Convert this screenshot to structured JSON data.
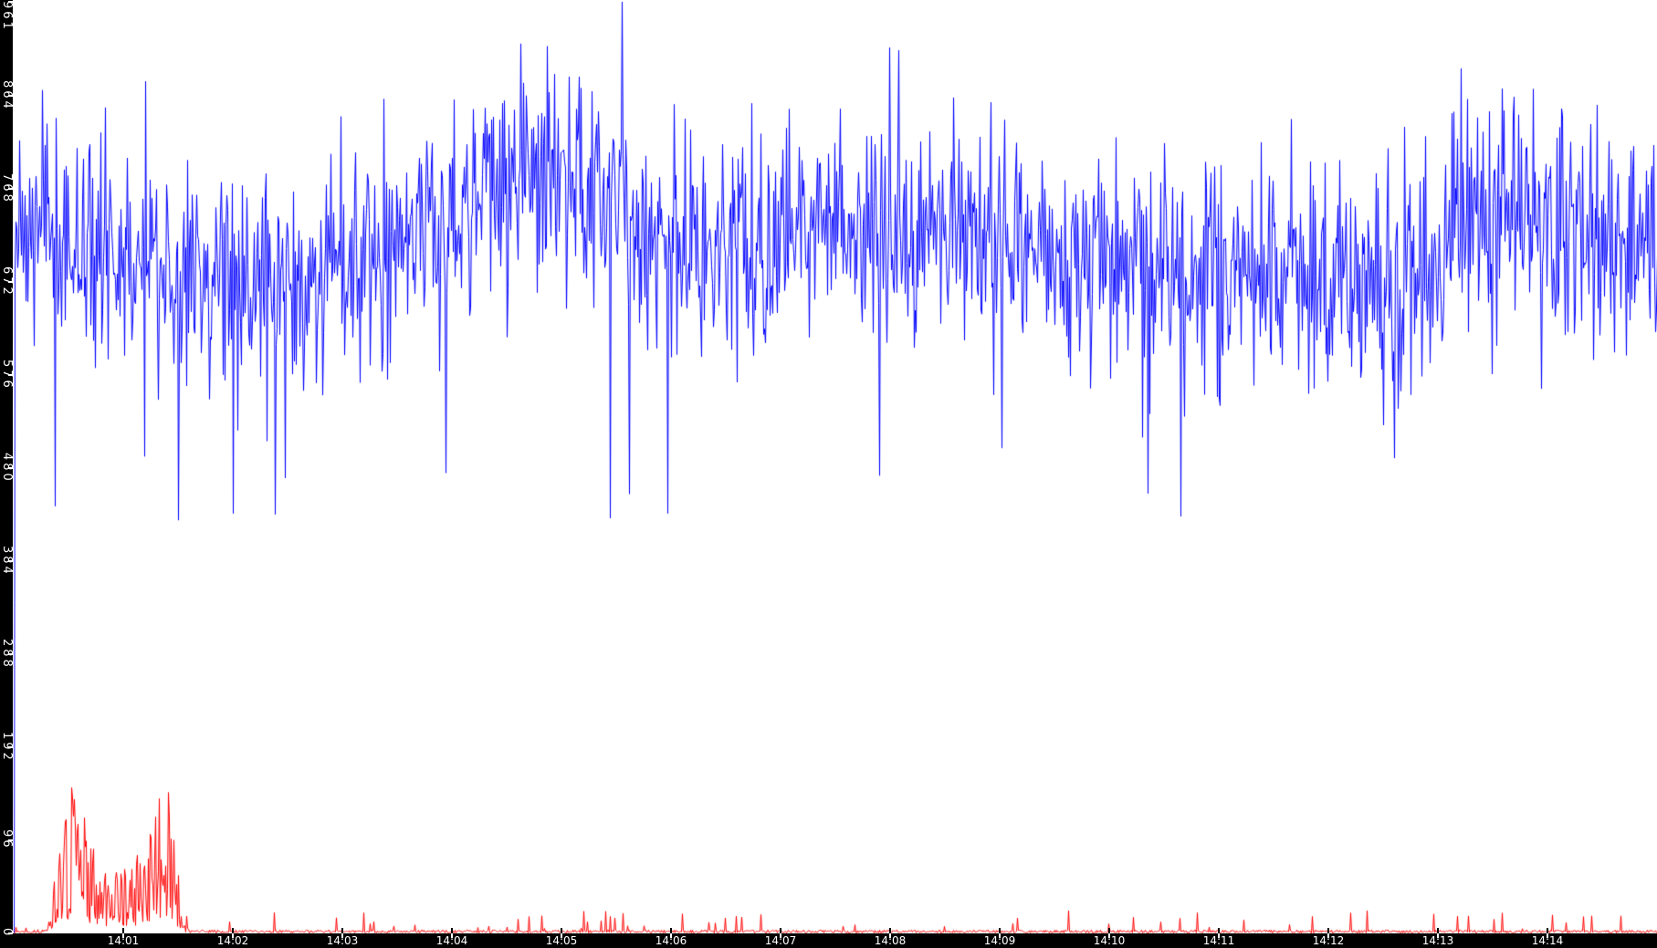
{
  "chart": {
    "background": "#ffffff",
    "axis_bar_color": "#000000",
    "axis_label_color": "#ffffff"
  },
  "chart_data": {
    "type": "line",
    "title": "",
    "xlabel": "",
    "ylabel": "",
    "grid": false,
    "legend": "none",
    "x_axis": {
      "tick_labels": [
        "14:01",
        "14:02",
        "14:03",
        "14:04",
        "14:05",
        "14:06",
        "14:07",
        "14:08",
        "14:09",
        "14:10",
        "14:11",
        "14:12",
        "14:13",
        "14:14"
      ],
      "tick_minutes": [
        1,
        2,
        3,
        4,
        5,
        6,
        7,
        8,
        9,
        10,
        11,
        12,
        13,
        14
      ],
      "range_minutes": [
        0,
        15
      ],
      "start_time": "14:00"
    },
    "y_axis": {
      "tick_labels": [
        "0",
        "96",
        "192",
        "288",
        "384",
        "480",
        "576",
        "672",
        "768",
        "864",
        "961"
      ],
      "tick_values": [
        0,
        96,
        192,
        288,
        384,
        480,
        576,
        672,
        768,
        864,
        961
      ],
      "ylim": [
        0,
        961
      ]
    },
    "series": [
      {
        "name": "blue-series",
        "color": "#0000ff",
        "style": "noisy-line",
        "seed": 7,
        "start_at_zero": true,
        "noise_sigma": 58,
        "min": 424,
        "max": 961,
        "dip_probability": 0.005,
        "envelope": [
          [
            0,
            730
          ],
          [
            0.9,
            700
          ],
          [
            1.6,
            675
          ],
          [
            2.6,
            680
          ],
          [
            3.5,
            705
          ],
          [
            4.2,
            755
          ],
          [
            5.2,
            785
          ],
          [
            5.7,
            745
          ],
          [
            6.2,
            685
          ],
          [
            6.8,
            725
          ],
          [
            7.4,
            740
          ],
          [
            8.2,
            710
          ],
          [
            9,
            720
          ],
          [
            9.7,
            695
          ],
          [
            10.7,
            690
          ],
          [
            11.7,
            685
          ],
          [
            12.7,
            665
          ],
          [
            13.4,
            750
          ],
          [
            14.4,
            720
          ],
          [
            15,
            725
          ]
        ],
        "peaks": [
          [
            1.5,
            426
          ],
          [
            2.0,
            433
          ],
          [
            2.38,
            432
          ],
          [
            5.55,
            961
          ],
          [
            5.44,
            428
          ],
          [
            10.65,
            430
          ]
        ]
      },
      {
        "name": "red-series",
        "color": "#ff0000",
        "style": "spiky-line",
        "seed": 13,
        "start_at_zero": true,
        "max": 150,
        "spikelet_probability": 0.045,
        "spikelet_max": 20,
        "envelope": [
          [
            0,
            2
          ],
          [
            0.3,
            4
          ],
          [
            0.36,
            40
          ],
          [
            0.45,
            95
          ],
          [
            0.52,
            115
          ],
          [
            0.62,
            100
          ],
          [
            0.75,
            62
          ],
          [
            0.9,
            48
          ],
          [
            1.05,
            52
          ],
          [
            1.2,
            75
          ],
          [
            1.32,
            105
          ],
          [
            1.42,
            115
          ],
          [
            1.48,
            70
          ],
          [
            1.53,
            12
          ],
          [
            1.6,
            3
          ],
          [
            15,
            3
          ]
        ],
        "peaks": [
          [
            0.55,
            138
          ],
          [
            1.41,
            145
          ]
        ]
      }
    ]
  }
}
